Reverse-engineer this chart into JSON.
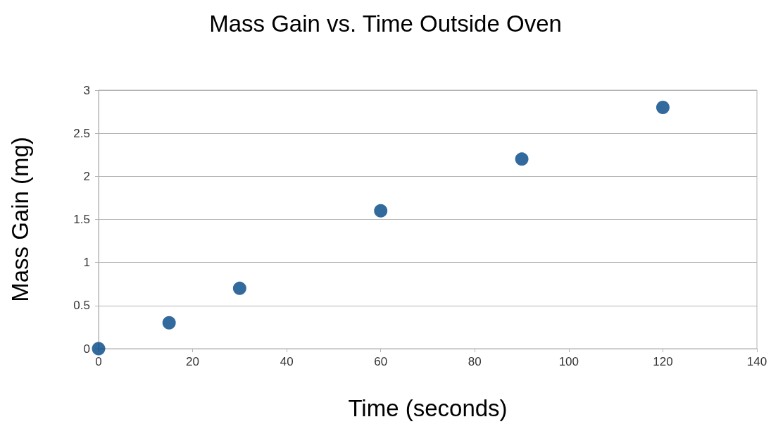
{
  "chart_data": {
    "type": "scatter",
    "title": "Mass Gain vs. Time Outside Oven",
    "xlabel": "Time (seconds)",
    "ylabel": "Mass Gain (mg)",
    "x": [
      0,
      15,
      30,
      60,
      90,
      120
    ],
    "series": [
      {
        "color": "#004586",
        "values": [
          0,
          0.3,
          0.7,
          1.6,
          2.2,
          2.8
        ]
      }
    ],
    "xlim": [
      0,
      140
    ],
    "xticks": [
      0,
      20,
      40,
      60,
      80,
      100,
      120,
      140
    ],
    "ylim": [
      0,
      3
    ],
    "yticks": [
      0,
      0.5,
      1,
      1.5,
      2,
      2.5,
      3
    ],
    "grid": "y",
    "marker": "circle"
  }
}
